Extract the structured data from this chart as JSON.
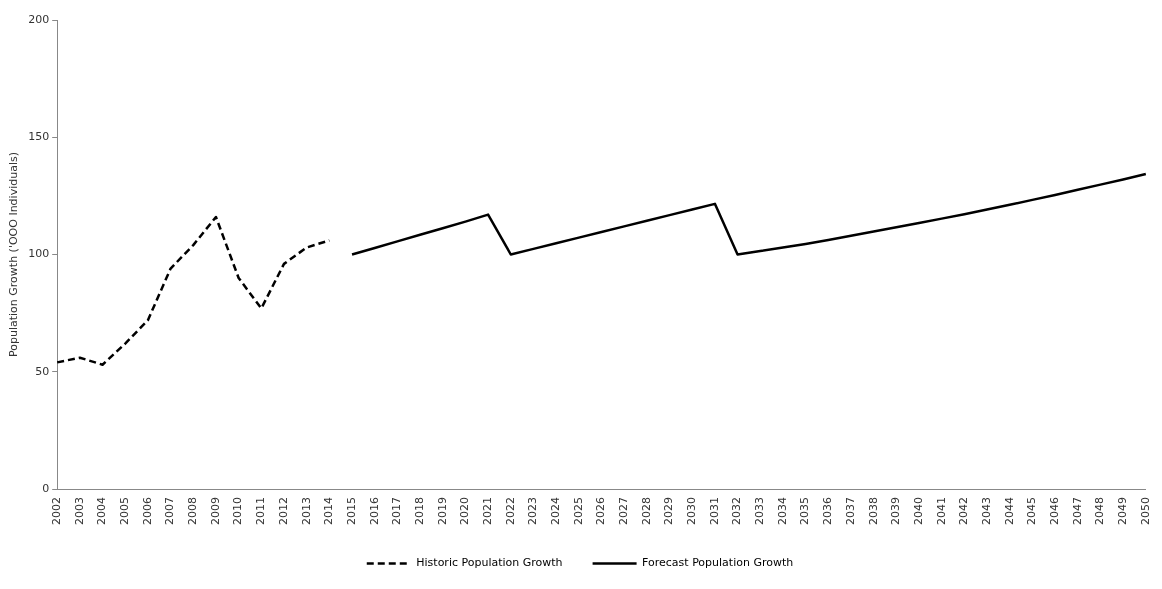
{
  "chart_data": {
    "type": "line",
    "ylabel": "Population Growth ('OOO Individuals)",
    "categories": [
      "2002",
      "2003",
      "2004",
      "2005",
      "2006",
      "2007",
      "2008",
      "2009",
      "2010",
      "2011",
      "2012",
      "2013",
      "2014",
      "2015",
      "2016",
      "2017",
      "2018",
      "2019",
      "2020",
      "2021",
      "2022",
      "2023",
      "2024",
      "2025",
      "2026",
      "2027",
      "2028",
      "2029",
      "2030",
      "2031",
      "2032",
      "2033",
      "2034",
      "2035",
      "2036",
      "2037",
      "2038",
      "2039",
      "2040",
      "2041",
      "2042",
      "2043",
      "2044",
      "2045",
      "2046",
      "2047",
      "2048",
      "2049",
      "2050"
    ],
    "series": [
      {
        "name": "Historic Population Growth",
        "color": "#000000",
        "line_style": "dashed",
        "values": [
          54,
          56,
          53,
          62,
          72,
          94,
          104,
          116,
          90,
          77,
          96,
          103,
          106,
          null,
          null,
          null,
          null,
          null,
          null,
          null,
          null,
          null,
          null,
          null,
          null,
          null,
          null,
          null,
          null,
          null,
          null,
          null,
          null,
          null,
          null,
          null,
          null,
          null,
          null,
          null,
          null,
          null,
          null,
          null,
          null,
          null,
          null,
          null,
          null
        ]
      },
      {
        "name": "Forecast Population Growth",
        "color": "#000000",
        "line_style": "solid",
        "values": [
          null,
          null,
          null,
          null,
          null,
          null,
          null,
          null,
          null,
          null,
          null,
          null,
          null,
          100,
          102.8,
          105.6,
          108.4,
          111.2,
          114,
          117,
          100,
          102.4,
          104.8,
          107.2,
          109.6,
          112,
          114.4,
          116.8,
          119.2,
          121.6,
          100,
          101.5,
          103,
          104.5,
          106.2,
          108,
          109.8,
          111.6,
          113.4,
          115.3,
          117.2,
          119.2,
          121.2,
          123.3,
          125.4,
          127.6,
          129.8,
          132,
          134.3
        ]
      }
    ],
    "ylim": [
      0,
      200
    ],
    "yticks": [
      0,
      50,
      100,
      150,
      200
    ],
    "grid": false,
    "legend": "bottom",
    "marker": "none"
  }
}
